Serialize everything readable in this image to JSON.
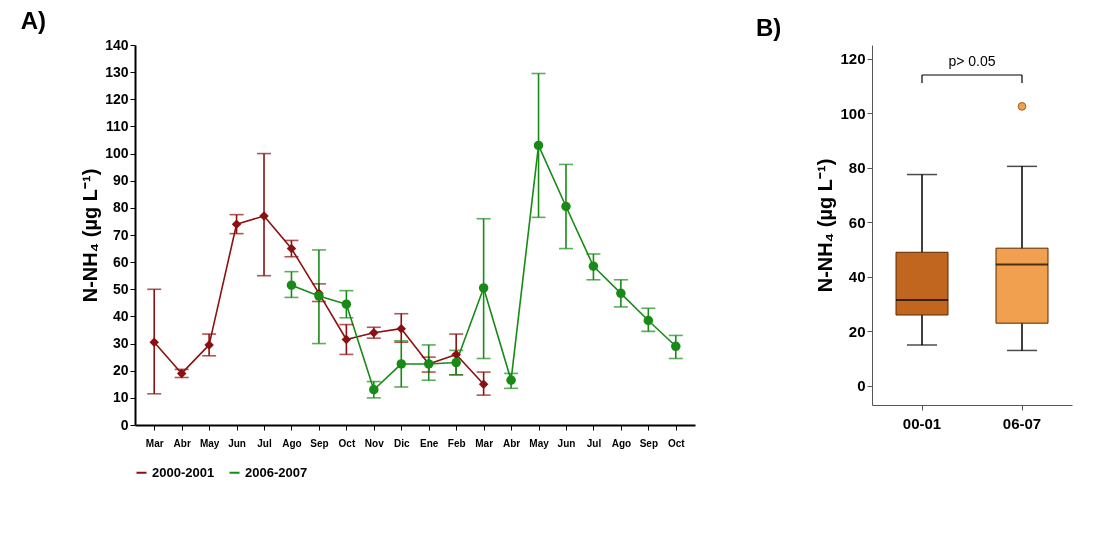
{
  "chart_data": [
    {
      "type": "line",
      "title": "A)",
      "ylabel": "N-NH₄ (µg L⁻¹)",
      "categories": [
        "Mar",
        "Abr",
        "May",
        "Jun",
        "Jul",
        "Ago",
        "Sep",
        "Oct",
        "Nov",
        "Dic",
        "Ene",
        "Feb",
        "Mar",
        "Abr",
        "May",
        "Jun",
        "Jul",
        "Ago",
        "Sep",
        "Oct"
      ],
      "series": [
        {
          "name": "2000-2001",
          "color": "#8b1010",
          "marker": "diamond",
          "values": [
            30.5,
            19,
            29.5,
            74,
            77,
            65,
            48.5,
            31.5,
            34,
            35.5,
            22.5,
            26,
            15,
            null,
            null,
            null,
            null,
            null,
            null,
            null
          ],
          "errors": [
            [
              11.5,
              50
            ],
            [
              17.5,
              20.5
            ],
            [
              25.5,
              33.5
            ],
            [
              70.5,
              77.5
            ],
            [
              55,
              100
            ],
            [
              62,
              68
            ],
            [
              45.5,
              52
            ],
            [
              26,
              37
            ],
            [
              32,
              36
            ],
            [
              30.5,
              41
            ],
            [
              19.5,
              25
            ],
            [
              18.5,
              33.5
            ],
            [
              11,
              19.5
            ],
            null,
            null,
            null,
            null,
            null,
            null,
            null
          ]
        },
        {
          "name": "2006-2007",
          "color": "#178a17",
          "marker": "circle",
          "values": [
            null,
            null,
            null,
            null,
            null,
            51.5,
            47.5,
            44.5,
            13,
            22.5,
            22.5,
            23,
            50.5,
            16.5,
            103,
            80.5,
            58.5,
            48.5,
            38.5,
            29
          ],
          "errors": [
            null,
            null,
            null,
            null,
            null,
            [
              47,
              56.5
            ],
            [
              30,
              64.5
            ],
            [
              39.5,
              49.5
            ],
            [
              10,
              16
            ],
            [
              14,
              31
            ],
            [
              16.5,
              29.5
            ],
            [
              18.5,
              27.5
            ],
            [
              24.5,
              76
            ],
            [
              13.5,
              19
            ],
            [
              76.5,
              129.5
            ],
            [
              65,
              96
            ],
            [
              53.5,
              63
            ],
            [
              43.5,
              53.5
            ],
            [
              34.5,
              43
            ],
            [
              24.5,
              33
            ]
          ]
        }
      ],
      "ylim": [
        0,
        140
      ],
      "yticks": [
        0,
        10,
        20,
        30,
        40,
        50,
        60,
        70,
        80,
        90,
        100,
        110,
        120,
        130,
        140
      ],
      "grid": false,
      "legend": "bottom",
      "line_style": "solid"
    },
    {
      "type": "box",
      "title": "B)",
      "ylabel": "N-NH₄ (µg L⁻¹)",
      "categories": [
        "00-01",
        "06-07"
      ],
      "boxes": [
        {
          "low": 15,
          "q1": 26,
          "median": 31.5,
          "q3": 49,
          "high": 77.5
        },
        {
          "low": 13,
          "q1": 23,
          "median": 44.5,
          "q3": 50.5,
          "high": 80.5,
          "outliers": [
            102.5
          ]
        }
      ],
      "colors": [
        "#c0661e",
        "#f0a04e"
      ],
      "ylim": [
        -7,
        125
      ],
      "yticks": [
        0,
        20,
        40,
        60,
        80,
        100,
        120
      ],
      "annotations": [
        "p> 0.05"
      ],
      "grid": false,
      "legend": false
    }
  ]
}
